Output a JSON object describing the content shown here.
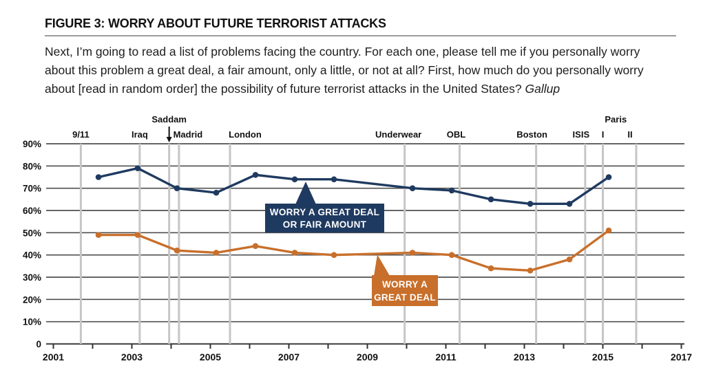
{
  "figure": {
    "title": "FIGURE 3: WORRY ABOUT FUTURE TERRORIST ATTACKS",
    "description": "Next, I’m going to read a list of problems facing the country. For each one, please tell me if you personally worry about this problem a great deal, a fair amount, only a little, or not at all? First, how much do you personally worry about [read in random order] the possibility of future terrorist attacks in the United States?",
    "source": "Gallup"
  },
  "chart_data": {
    "type": "line",
    "title": "Worry about future terrorist attacks (Gallup trend)",
    "x": [
      2002.15,
      2003.15,
      2004.15,
      2005.15,
      2006.15,
      2007.15,
      2008.15,
      2010.15,
      2011.15,
      2012.15,
      2013.15,
      2014.15,
      2015.15
    ],
    "series": [
      {
        "name": "WORRY A GREAT DEAL OR FAIR AMOUNT",
        "color": "#1f3a60",
        "values": [
          75,
          79,
          70,
          68,
          76,
          74,
          74,
          70,
          69,
          65,
          63,
          63,
          75
        ]
      },
      {
        "name": "WORRY A GREAT DEAL",
        "color": "#c86f2b",
        "values": [
          49,
          49,
          42,
          41,
          44,
          41,
          40,
          41,
          40,
          34,
          33,
          38,
          51
        ]
      }
    ],
    "callouts": [
      {
        "lines": [
          "WORRY A GREAT DEAL",
          "OR FAIR AMOUNT"
        ],
        "color": "#1f3a60"
      },
      {
        "lines": [
          "WORRY A",
          "GREAT DEAL"
        ],
        "color": "#c86f2b"
      }
    ],
    "events": [
      {
        "label": "9/11",
        "year": 2001.7,
        "row": 1
      },
      {
        "label": "Iraq",
        "year": 2003.2,
        "row": 1
      },
      {
        "label": "Saddam",
        "year": 2003.95,
        "row": 2,
        "arrow": true
      },
      {
        "label": "Madrid",
        "year": 2004.2,
        "row": 1,
        "dx": 13
      },
      {
        "label": "London",
        "year": 2005.5,
        "row": 1,
        "dx": 22
      },
      {
        "label": "Underwear",
        "year": 2009.95,
        "row": 1,
        "dx": -9
      },
      {
        "label": "OBL",
        "year": 2011.35,
        "row": 1,
        "dx": -5
      },
      {
        "label": "Boston",
        "year": 2013.3,
        "row": 1,
        "dx": -6
      },
      {
        "label": "ISIS",
        "year": 2014.55,
        "row": 1,
        "dx": -6
      },
      {
        "label": "Paris",
        "year": 2015.33,
        "row": 2,
        "no_line": true
      },
      {
        "label": "I",
        "year": 2015.0,
        "row": 1
      },
      {
        "label": "II",
        "year": 2015.85,
        "row": 1,
        "dx": -9
      }
    ],
    "y_ticks": [
      {
        "v": 90,
        "label": "90%"
      },
      {
        "v": 80,
        "label": "80%"
      },
      {
        "v": 70,
        "label": "70%"
      },
      {
        "v": 60,
        "label": "60%"
      },
      {
        "v": 50,
        "label": "50%"
      },
      {
        "v": 40,
        "label": "40%"
      },
      {
        "v": 30,
        "label": "30%"
      },
      {
        "v": 20,
        "label": "20%"
      },
      {
        "v": 10,
        "label": "10%"
      },
      {
        "v": 0,
        "label": "0"
      }
    ],
    "x_tick_labels": [
      "2001",
      "2003",
      "2005",
      "2007",
      "2009",
      "2011",
      "2013",
      "2015",
      "2017"
    ],
    "xlim": [
      2001,
      2017
    ],
    "ylim": [
      0,
      90
    ],
    "grid": true,
    "legend_position": "callouts-on-plot",
    "colors": {
      "grid": "#4f4f4f",
      "event_line": "#c6c6c6",
      "axis_text": "#111111"
    }
  }
}
